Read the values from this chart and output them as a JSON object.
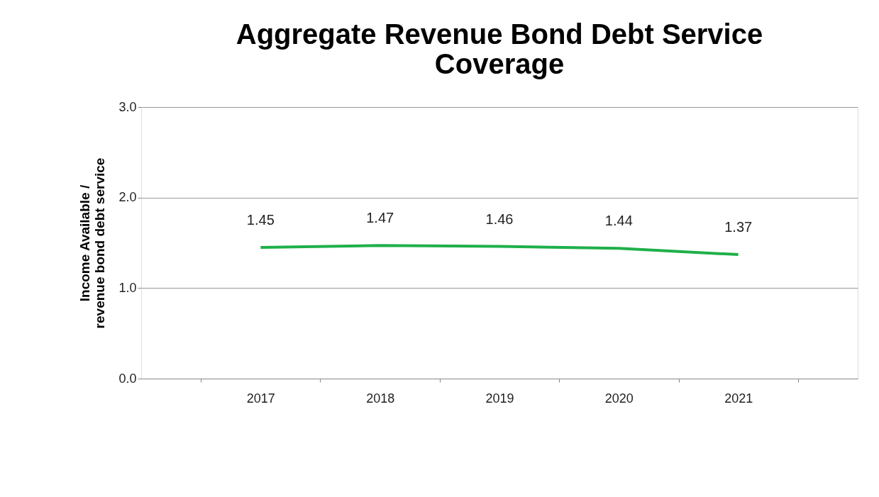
{
  "chart_data": {
    "type": "line",
    "title": "Aggregate Revenue Bond Debt Service Coverage",
    "ylabel": "Income Available / revenue bond  debt service",
    "categories": [
      "2017",
      "2018",
      "2019",
      "2020",
      "2021"
    ],
    "series": [
      {
        "color": "#1fb04a",
        "values": [
          1.45,
          1.47,
          1.46,
          1.44,
          1.37
        ]
      }
    ],
    "ylim": [
      0,
      3
    ],
    "yticks": [
      {
        "value": 0,
        "label": "0.0"
      },
      {
        "value": 1,
        "label": "1.0"
      },
      {
        "value": 2,
        "label": "2.0"
      },
      {
        "value": 3,
        "label": "3.0"
      }
    ],
    "grid": "y",
    "data_labels": true,
    "legend": false,
    "marker": "none",
    "line_style": "solid"
  }
}
